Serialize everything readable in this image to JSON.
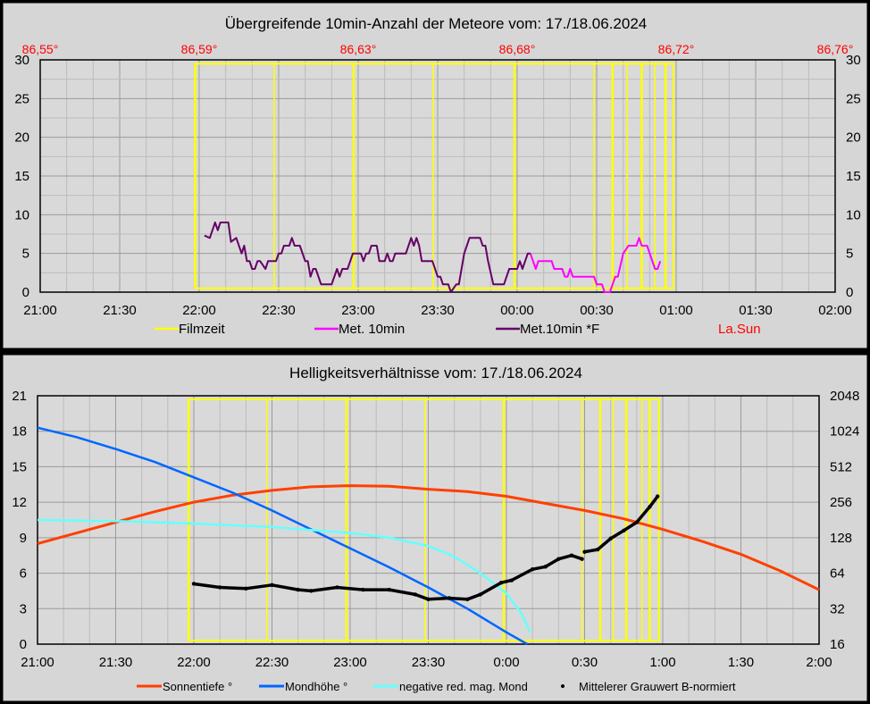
{
  "chart_data": [
    {
      "type": "line",
      "title": "Übergreifende 10min-Anzahl der Meteore vom: 17./18.06.2024",
      "x_unit": "minutes since 21:00",
      "xlim": [
        0,
        300
      ],
      "ylim": [
        0,
        30
      ],
      "x_ticks": [
        "21:00",
        "21:30",
        "22:00",
        "22:30",
        "23:00",
        "23:30",
        "00:00",
        "00:30",
        "01:00",
        "01:30",
        "02:00"
      ],
      "y_ticks": [
        "0",
        "5",
        "10",
        "15",
        "20",
        "25",
        "30"
      ],
      "top_ticks": [
        "86,55°",
        "86,59°",
        "86,63°",
        "86,68°",
        "86,72°",
        "86,76°"
      ],
      "grid": true,
      "legend": [
        "Filmzeit",
        "Met. 10min",
        "Met.10min *F",
        "La.Sun"
      ],
      "legend_placement": "bottom",
      "colors": {
        "filmzeit": "#ffff00",
        "met10": "#ff00ff",
        "met10f": "#660066",
        "lasun": "#ff0000"
      },
      "filmzeit": {
        "start": 58.5,
        "end": 239,
        "low": 0.5,
        "high": 29.5,
        "boundaries": [
          58.5,
          88.3,
          118.3,
          148.3,
          179,
          209,
          216,
          221.5,
          227,
          232,
          236,
          239
        ]
      },
      "series": [
        {
          "name": "Met.10min *F",
          "x": [
            62,
            64,
            66,
            67,
            68,
            71,
            72,
            74,
            76,
            77,
            78,
            79,
            80,
            81,
            82,
            83,
            85,
            86,
            89,
            90,
            91,
            92,
            94,
            95,
            96,
            98,
            100,
            101,
            102,
            103,
            104,
            106,
            110,
            112,
            113,
            114,
            116,
            118,
            121,
            122,
            123,
            124,
            125,
            127,
            128,
            130,
            131,
            132,
            133,
            134,
            138,
            140,
            141,
            142,
            143,
            144,
            148,
            150,
            151,
            152,
            154,
            155,
            157,
            158,
            159,
            160,
            162,
            166,
            167,
            168,
            169,
            171,
            175,
            177,
            180,
            181,
            182,
            183,
            184,
            185
          ],
          "y": [
            7.3,
            7,
            9,
            8,
            9,
            9,
            6.5,
            7,
            5,
            6,
            4,
            4,
            3,
            3,
            4,
            4,
            3,
            4,
            4,
            5,
            5,
            6,
            6,
            7,
            6,
            6,
            4,
            4,
            2,
            3,
            3,
            1,
            1,
            3,
            2,
            3,
            3,
            5,
            5,
            4,
            5,
            5,
            6,
            6,
            4,
            4,
            5,
            4,
            4,
            5,
            5,
            7,
            6,
            7,
            6,
            4,
            4,
            2,
            2,
            1,
            1,
            0,
            1,
            1,
            3,
            5,
            7,
            7,
            6,
            6,
            4,
            1,
            1,
            3,
            3,
            4,
            3,
            4,
            5,
            5
          ]
        },
        {
          "name": "Met. 10min",
          "x": [
            185,
            186,
            187,
            188,
            193,
            194,
            197,
            198,
            199,
            200,
            201,
            205,
            206,
            209,
            210,
            212,
            213,
            215,
            217,
            218,
            220,
            222,
            225,
            226,
            227,
            229,
            232,
            233,
            234
          ],
          "y": [
            5,
            4,
            3,
            4,
            4,
            3,
            3,
            2,
            2,
            3,
            2,
            2,
            2,
            2,
            1,
            1,
            0,
            0,
            2,
            2,
            5,
            6,
            6,
            7,
            6,
            6,
            3,
            3,
            4
          ]
        }
      ]
    },
    {
      "type": "line",
      "title": "Helligkeitsverhältnisse vom: 17./18.06.2024",
      "x_unit": "minutes since 21:00",
      "xlim": [
        0,
        300
      ],
      "ylim": [
        0,
        21
      ],
      "y2lim": [
        16,
        2048
      ],
      "y2_scale": "log2",
      "x_ticks": [
        "21:00",
        "21:30",
        "22:00",
        "22:30",
        "23:00",
        "23:30",
        "0:00",
        "0:30",
        "1:00",
        "1:30",
        "2:00"
      ],
      "y_ticks": [
        "0",
        "3",
        "6",
        "9",
        "12",
        "15",
        "18",
        "21"
      ],
      "y2_ticks": [
        "16",
        "32",
        "64",
        "128",
        "256",
        "512",
        "1024",
        "2048"
      ],
      "grid": true,
      "legend": [
        "Sonnentiefe °",
        "Mondhöhe °",
        "negative red. mag. Mond",
        "Mittelerer Grauwert B-normiert"
      ],
      "legend_placement": "bottom",
      "colors": {
        "sonne": "#ff4000",
        "mond": "#0066ff",
        "mag": "#66ffff",
        "grau": "#000000",
        "filmzeit": "#ffff00"
      },
      "filmzeit": {
        "start": 58,
        "end": 238.5,
        "low": 0.3,
        "high": 20.7,
        "boundaries": [
          58,
          88,
          118.6,
          148.8,
          179,
          209,
          216,
          221,
          226,
          232,
          235,
          238.5
        ]
      },
      "series": [
        {
          "name": "Sonnentiefe °",
          "axis": "left",
          "x": [
            0,
            15,
            30,
            45,
            60,
            75,
            90,
            105,
            120,
            135,
            150,
            165,
            180,
            195,
            210,
            225,
            240,
            255,
            270,
            285,
            300
          ],
          "y": [
            8.5,
            9.4,
            10.3,
            11.2,
            12.0,
            12.6,
            13.0,
            13.3,
            13.4,
            13.35,
            13.1,
            12.9,
            12.5,
            11.9,
            11.3,
            10.6,
            9.7,
            8.7,
            7.6,
            6.2,
            4.6
          ]
        },
        {
          "name": "Mondhöhe °",
          "axis": "left",
          "x": [
            0,
            15,
            30,
            45,
            60,
            75,
            90,
            105,
            120,
            135,
            150,
            165,
            180,
            188
          ],
          "y": [
            18.3,
            17.5,
            16.5,
            15.4,
            14.1,
            12.8,
            11.3,
            9.7,
            8.1,
            6.5,
            4.8,
            3.0,
            1.0,
            0
          ]
        },
        {
          "name": "negative red. mag. Mond",
          "axis": "left",
          "x": [
            0,
            30,
            60,
            90,
            120,
            135,
            150,
            160,
            170,
            180,
            186,
            189
          ],
          "y": [
            10.5,
            10.4,
            10.2,
            9.9,
            9.4,
            9.0,
            8.3,
            7.4,
            6.0,
            4.3,
            2.5,
            1.0
          ]
        },
        {
          "name": "Mittelerer Grauwert B-normiert",
          "axis": "right",
          "x": [
            60,
            70,
            80,
            90,
            100,
            105,
            115,
            125,
            135,
            145,
            150,
            158,
            165,
            170,
            178,
            182,
            190,
            195,
            200,
            205,
            209,
            210,
            215,
            220,
            225,
            230,
            235,
            238
          ],
          "y": [
            52,
            48.5,
            47.4,
            50.8,
            46.3,
            45.3,
            48.5,
            46.3,
            46.3,
            42.2,
            38.4,
            39.3,
            38.4,
            42.2,
            53.2,
            55.7,
            69.1,
            72.6,
            84.4,
            90.5,
            84.4,
            97,
            101.6,
            126,
            147,
            173,
            234,
            287
          ],
          "break_after_index": 20
        }
      ]
    }
  ]
}
